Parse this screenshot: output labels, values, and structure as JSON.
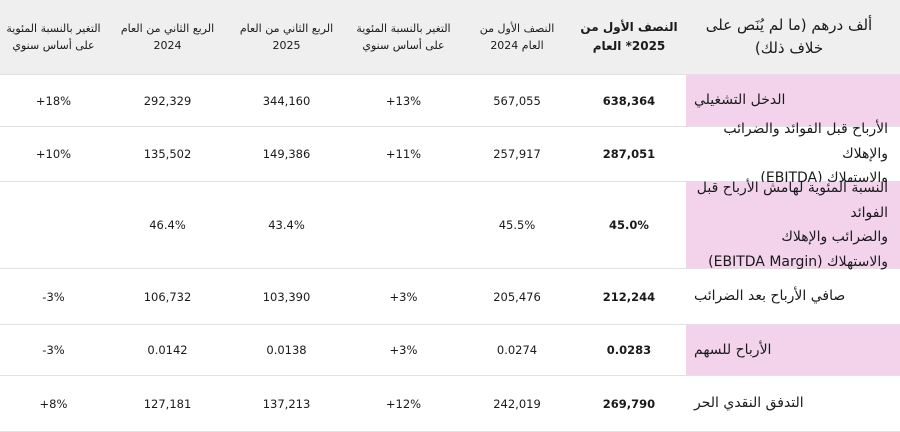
{
  "header": {
    "title": "ألف درهم (ما لم يُنَص على خلاف ذلك)",
    "col_h1_2025": "النصف الأول من 2025* العام",
    "col_h1_2024": "النصف الأول من العام 2024",
    "col_change_1": "التغير بالنسبة المئوية على أساس سنوي",
    "col_q2_2025": "الربع الثاني من العام 2025",
    "col_q2_2024": "الربع الثاني من العام 2024",
    "col_change_2": "التغير بالنسبة المئوية على أساس سنوي"
  },
  "rows": [
    {
      "label": "الدخل التشغيلي",
      "h1_2025": "638,364",
      "h1_2024": "567,055",
      "change_h1": "+13%",
      "q2_2025": "344,160",
      "q2_2024": "292,329",
      "change_q2": "+18%"
    },
    {
      "label_line1": "الأرباح قبل الفوائد والضرائب والإهلاك",
      "label_line2": "والاستهلاك (EBITDA)",
      "h1_2025": "287,051",
      "h1_2024": "257,917",
      "change_h1": "+11%",
      "q2_2025": "149,386",
      "q2_2024": "135,502",
      "change_q2": "+10%"
    },
    {
      "label_line1": "النسبة المئوية لهامش الأرباح قبل الفوائد",
      "label_line2": "والضرائب والإهلاك",
      "label_line3": "والاستهلاك (EBITDA Margin)",
      "h1_2025": "45.0%",
      "h1_2024": "45.5%",
      "change_h1": "",
      "q2_2025": "43.4%",
      "q2_2024": "46.4%",
      "change_q2": ""
    },
    {
      "label": "صافي الأرباح بعد الضرائب",
      "h1_2025": "212,244",
      "h1_2024": "205,476",
      "change_h1": "+3%",
      "q2_2025": "103,390",
      "q2_2024": "106,732",
      "change_q2": "-3%"
    },
    {
      "label": "الأرباح للسهم",
      "h1_2025": "0.0283",
      "h1_2024": "0.0274",
      "change_h1": "+3%",
      "q2_2025": "0.0138",
      "q2_2024": "0.0142",
      "change_q2": "-3%"
    },
    {
      "label": "التدفق النقدي الحر",
      "h1_2025": "269,790",
      "h1_2024": "242,019",
      "change_h1": "+12%",
      "q2_2025": "137,213",
      "q2_2024": "127,181",
      "change_q2": "+8%"
    }
  ],
  "colors": {
    "header_bg": "#efefef",
    "label_highlight": "#f3d3ec"
  }
}
